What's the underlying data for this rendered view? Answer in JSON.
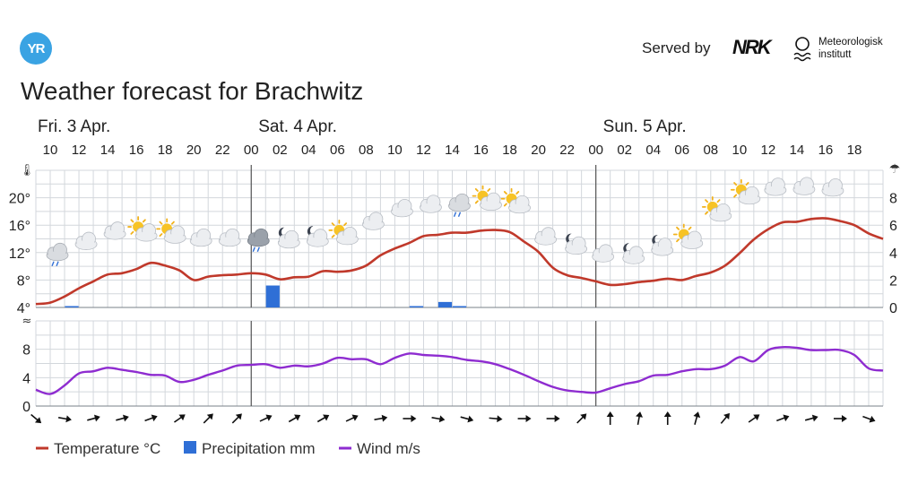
{
  "header": {
    "logo_text": "YR",
    "served_by": "Served by",
    "brand_nrk": "NRK",
    "brand_met_line1": "Meteorologisk",
    "brand_met_line2": "institutt",
    "title": "Weather forecast for Brachwitz"
  },
  "chart_data": {
    "type": "line",
    "days": [
      {
        "label": "Fri. 3 Apr.",
        "hour": 10
      },
      {
        "label": "Sat. 4 Apr.",
        "hour": 24
      },
      {
        "label": "Sun. 5 Apr.",
        "hour": 48
      }
    ],
    "x_tick_labels": [
      "10",
      "12",
      "14",
      "16",
      "18",
      "20",
      "22",
      "00",
      "02",
      "04",
      "06",
      "08",
      "10",
      "12",
      "14",
      "16",
      "18",
      "20",
      "22",
      "00",
      "02",
      "04",
      "06",
      "08",
      "10",
      "12",
      "14",
      "16",
      "18"
    ],
    "x_start_hour": 9,
    "x_end_hour": 68,
    "temperature": {
      "name": "Temperature °C",
      "unit": "°C",
      "color": "#c0392b",
      "ylim": [
        4,
        24
      ],
      "ticks": [
        "4°",
        "8°",
        "12°",
        "16°",
        "20°"
      ],
      "hours": [
        9,
        10,
        11,
        12,
        13,
        14,
        15,
        16,
        17,
        18,
        19,
        20,
        21,
        22,
        23,
        24,
        25,
        26,
        27,
        28,
        29,
        30,
        31,
        32,
        33,
        34,
        35,
        36,
        37,
        38,
        39,
        40,
        41,
        42,
        43,
        44,
        45,
        46,
        47,
        48,
        49,
        50,
        51,
        52,
        53,
        54,
        55,
        56,
        57,
        58,
        59,
        60,
        61,
        62,
        63,
        64,
        65,
        66,
        67,
        68
      ],
      "values": [
        4.5,
        4.7,
        5.6,
        6.8,
        7.8,
        8.8,
        9.0,
        9.6,
        10.5,
        10.1,
        9.4,
        8.0,
        8.5,
        8.7,
        8.8,
        9.0,
        8.8,
        8.1,
        8.4,
        8.5,
        9.3,
        9.2,
        9.4,
        10.1,
        11.6,
        12.6,
        13.4,
        14.4,
        14.6,
        14.9,
        14.9,
        15.2,
        15.3,
        15.0,
        13.6,
        12.1,
        9.8,
        8.7,
        8.3,
        7.8,
        7.3,
        7.4,
        7.7,
        7.9,
        8.2,
        8.0,
        8.6,
        9.1,
        10.1,
        11.9,
        13.9,
        15.4,
        16.4,
        16.5,
        16.9,
        17.0,
        16.6,
        16.0,
        14.8,
        14.0
      ]
    },
    "precipitation": {
      "name": "Precipitation mm",
      "unit": "mm",
      "color": "#2f6fd6",
      "ylim": [
        0,
        10
      ],
      "ticks": [
        "0",
        "2",
        "4",
        "6",
        "8"
      ],
      "bars": [
        {
          "hour": 11.5,
          "value": 0.1
        },
        {
          "hour": 25.5,
          "value": 1.6
        },
        {
          "hour": 35.5,
          "value": 0.1
        },
        {
          "hour": 37.5,
          "value": 0.4
        },
        {
          "hour": 38.5,
          "value": 0.1
        }
      ]
    },
    "wind": {
      "name": "Wind m/s",
      "unit": "m/s",
      "color": "#8e2cd0",
      "ylim": [
        0,
        12
      ],
      "ticks": [
        "0",
        "4",
        "8"
      ],
      "hours": [
        9,
        10,
        11,
        12,
        13,
        14,
        15,
        16,
        17,
        18,
        19,
        20,
        21,
        22,
        23,
        24,
        25,
        26,
        27,
        28,
        29,
        30,
        31,
        32,
        33,
        34,
        35,
        36,
        37,
        38,
        39,
        40,
        41,
        42,
        43,
        44,
        45,
        46,
        47,
        48,
        49,
        50,
        51,
        52,
        53,
        54,
        55,
        56,
        57,
        58,
        59,
        60,
        61,
        62,
        63,
        64,
        65,
        66,
        67,
        68
      ],
      "values": [
        2.3,
        1.7,
        2.9,
        4.6,
        4.9,
        5.4,
        5.1,
        4.8,
        4.4,
        4.3,
        3.4,
        3.7,
        4.4,
        5.0,
        5.7,
        5.8,
        5.9,
        5.4,
        5.7,
        5.6,
        6.0,
        6.8,
        6.6,
        6.6,
        5.9,
        6.8,
        7.4,
        7.2,
        7.1,
        6.9,
        6.5,
        6.3,
        5.9,
        5.2,
        4.4,
        3.5,
        2.7,
        2.2,
        2.0,
        1.9,
        2.5,
        3.1,
        3.5,
        4.3,
        4.4,
        4.9,
        5.2,
        5.2,
        5.7,
        6.9,
        6.3,
        7.9,
        8.3,
        8.2,
        7.9,
        7.9,
        7.9,
        7.2,
        5.3,
        5.0
      ]
    },
    "weather_icons": [
      {
        "hour": 10.5,
        "temp": 12.0,
        "icon": "cloud-light-rain-icon"
      },
      {
        "hour": 12.5,
        "temp": 13.6,
        "icon": "cloud-icon"
      },
      {
        "hour": 14.5,
        "temp": 15.1,
        "icon": "cloud-icon"
      },
      {
        "hour": 16.5,
        "temp": 15.1,
        "icon": "partly-sunny-icon"
      },
      {
        "hour": 18.5,
        "temp": 14.8,
        "icon": "partly-sunny-icon"
      },
      {
        "hour": 20.5,
        "temp": 14.1,
        "icon": "cloud-icon"
      },
      {
        "hour": 22.5,
        "temp": 14.1,
        "icon": "cloud-icon"
      },
      {
        "hour": 24.5,
        "temp": 14.1,
        "icon": "dark-cloud-rain-icon"
      },
      {
        "hour": 26.5,
        "temp": 14.1,
        "icon": "night-cloud-icon"
      },
      {
        "hour": 28.5,
        "temp": 14.3,
        "icon": "night-cloud-icon"
      },
      {
        "hour": 30.5,
        "temp": 14.6,
        "icon": "partly-sunny-icon"
      },
      {
        "hour": 32.5,
        "temp": 16.5,
        "icon": "cloud-icon"
      },
      {
        "hour": 34.5,
        "temp": 18.4,
        "icon": "cloud-icon"
      },
      {
        "hour": 36.5,
        "temp": 19.0,
        "icon": "cloud-icon"
      },
      {
        "hour": 38.5,
        "temp": 19.2,
        "icon": "cloud-light-rain-icon"
      },
      {
        "hour": 40.5,
        "temp": 19.6,
        "icon": "partly-sunny-icon"
      },
      {
        "hour": 42.5,
        "temp": 19.2,
        "icon": "partly-sunny-icon"
      },
      {
        "hour": 44.5,
        "temp": 14.3,
        "icon": "cloud-icon"
      },
      {
        "hour": 46.5,
        "temp": 13.2,
        "icon": "night-cloud-icon"
      },
      {
        "hour": 48.5,
        "temp": 11.8,
        "icon": "cloud-icon"
      },
      {
        "hour": 50.5,
        "temp": 11.8,
        "icon": "night-cloud-icon"
      },
      {
        "hour": 52.5,
        "temp": 13.0,
        "icon": "night-cloud-icon"
      },
      {
        "hour": 54.5,
        "temp": 14.0,
        "icon": "partly-sunny-icon"
      },
      {
        "hour": 56.5,
        "temp": 18.0,
        "icon": "partly-sunny-icon"
      },
      {
        "hour": 58.5,
        "temp": 20.5,
        "icon": "partly-sunny-icon"
      },
      {
        "hour": 60.5,
        "temp": 21.5,
        "icon": "cloud-icon"
      },
      {
        "hour": 62.5,
        "temp": 21.6,
        "icon": "cloud-icon"
      },
      {
        "hour": 64.5,
        "temp": 21.4,
        "icon": "cloud-icon"
      }
    ],
    "wind_directions": [
      {
        "hour": 9,
        "deg": 40
      },
      {
        "hour": 11,
        "deg": 10
      },
      {
        "hour": 13,
        "deg": -15
      },
      {
        "hour": 15,
        "deg": -15
      },
      {
        "hour": 17,
        "deg": -20
      },
      {
        "hour": 19,
        "deg": -35
      },
      {
        "hour": 21,
        "deg": -45
      },
      {
        "hour": 23,
        "deg": -45
      },
      {
        "hour": 25,
        "deg": -25
      },
      {
        "hour": 27,
        "deg": -30
      },
      {
        "hour": 29,
        "deg": -30
      },
      {
        "hour": 31,
        "deg": -25
      },
      {
        "hour": 33,
        "deg": -10
      },
      {
        "hour": 35,
        "deg": 0
      },
      {
        "hour": 37,
        "deg": 10
      },
      {
        "hour": 39,
        "deg": 15
      },
      {
        "hour": 41,
        "deg": 5
      },
      {
        "hour": 43,
        "deg": 0
      },
      {
        "hour": 45,
        "deg": 0
      },
      {
        "hour": 47,
        "deg": -45
      },
      {
        "hour": 49,
        "deg": -90
      },
      {
        "hour": 51,
        "deg": -80
      },
      {
        "hour": 53,
        "deg": -90
      },
      {
        "hour": 55,
        "deg": -75
      },
      {
        "hour": 57,
        "deg": -50
      },
      {
        "hour": 59,
        "deg": -35
      },
      {
        "hour": 61,
        "deg": -20
      },
      {
        "hour": 63,
        "deg": -15
      },
      {
        "hour": 65,
        "deg": 0
      },
      {
        "hour": 67,
        "deg": 20
      }
    ],
    "legend": [
      "Temperature °C",
      "Precipitation mm",
      "Wind m/s"
    ],
    "legend_placement": "bottom-left",
    "grid": true
  }
}
